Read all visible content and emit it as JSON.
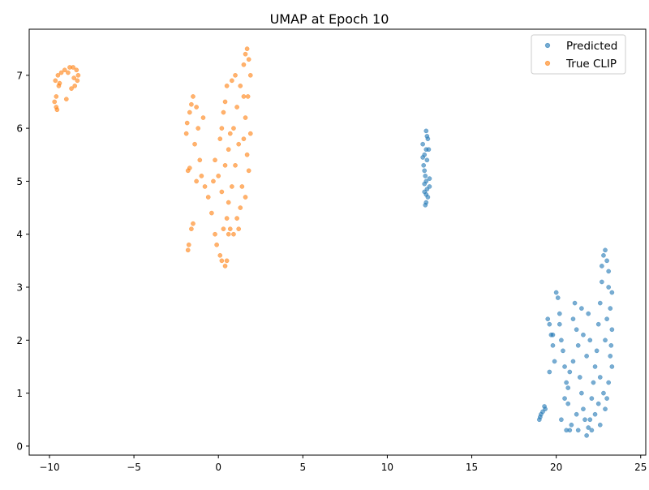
{
  "chart_data": {
    "type": "scatter",
    "title": "UMAP at Epoch 10",
    "xlabel": "",
    "ylabel": "",
    "xlim": [
      -11.2,
      25.3
    ],
    "ylim": [
      -0.17,
      7.87
    ],
    "xticks": [
      -10,
      -5,
      0,
      5,
      10,
      15,
      20,
      25
    ],
    "yticks": [
      0,
      1,
      2,
      3,
      4,
      5,
      6,
      7
    ],
    "grid": false,
    "legend_position": "top-right",
    "marker_alpha": 0.6,
    "series": [
      {
        "name": "Predicted",
        "color": "#1f77b4",
        "points": [
          [
            12.1,
            5.7
          ],
          [
            12.2,
            5.5
          ],
          [
            12.3,
            5.95
          ],
          [
            12.35,
            5.85
          ],
          [
            12.4,
            5.8
          ],
          [
            12.3,
            5.6
          ],
          [
            12.15,
            5.3
          ],
          [
            12.2,
            5.2
          ],
          [
            12.25,
            5.1
          ],
          [
            12.3,
            5.0
          ],
          [
            12.5,
            5.05
          ],
          [
            12.5,
            4.9
          ],
          [
            12.35,
            4.85
          ],
          [
            12.3,
            4.75
          ],
          [
            12.4,
            4.7
          ],
          [
            12.3,
            4.6
          ],
          [
            12.25,
            4.55
          ],
          [
            12.2,
            4.95
          ],
          [
            12.45,
            5.6
          ],
          [
            12.1,
            5.45
          ],
          [
            12.35,
            5.4
          ],
          [
            12.2,
            4.8
          ],
          [
            19.0,
            0.5
          ],
          [
            19.05,
            0.55
          ],
          [
            19.1,
            0.6
          ],
          [
            19.2,
            0.65
          ],
          [
            19.3,
            0.75
          ],
          [
            19.35,
            0.7
          ],
          [
            19.5,
            2.4
          ],
          [
            19.6,
            2.3
          ],
          [
            19.7,
            2.1
          ],
          [
            19.8,
            1.9
          ],
          [
            19.6,
            1.4
          ],
          [
            19.9,
            1.6
          ],
          [
            20.0,
            2.9
          ],
          [
            20.1,
            2.8
          ],
          [
            20.2,
            2.5
          ],
          [
            20.2,
            2.3
          ],
          [
            20.3,
            2.0
          ],
          [
            20.4,
            1.8
          ],
          [
            20.5,
            1.5
          ],
          [
            20.6,
            1.2
          ],
          [
            20.5,
            0.9
          ],
          [
            20.7,
            0.8
          ],
          [
            20.8,
            0.3
          ],
          [
            20.9,
            0.4
          ],
          [
            20.7,
            1.1
          ],
          [
            20.8,
            1.4
          ],
          [
            21.0,
            2.4
          ],
          [
            21.1,
            2.7
          ],
          [
            21.2,
            2.2
          ],
          [
            21.3,
            1.9
          ],
          [
            21.0,
            1.6
          ],
          [
            21.4,
            1.3
          ],
          [
            21.5,
            1.0
          ],
          [
            21.6,
            0.7
          ],
          [
            21.7,
            0.5
          ],
          [
            21.3,
            0.3
          ],
          [
            21.8,
            0.2
          ],
          [
            21.9,
            0.35
          ],
          [
            22.0,
            0.5
          ],
          [
            22.1,
            0.9
          ],
          [
            22.2,
            1.2
          ],
          [
            21.5,
            2.6
          ],
          [
            21.6,
            2.1
          ],
          [
            21.8,
            1.7
          ],
          [
            21.9,
            2.5
          ],
          [
            22.0,
            2.0
          ],
          [
            22.3,
            1.5
          ],
          [
            22.4,
            1.8
          ],
          [
            22.5,
            2.3
          ],
          [
            22.6,
            2.7
          ],
          [
            22.7,
            3.1
          ],
          [
            22.8,
            3.6
          ],
          [
            22.9,
            3.7
          ],
          [
            22.7,
            3.4
          ],
          [
            23.0,
            3.5
          ],
          [
            23.1,
            3.3
          ],
          [
            23.1,
            3.0
          ],
          [
            23.2,
            2.6
          ],
          [
            23.3,
            2.2
          ],
          [
            23.25,
            1.9
          ],
          [
            23.2,
            1.7
          ],
          [
            23.3,
            1.5
          ],
          [
            23.1,
            1.2
          ],
          [
            23.0,
            0.9
          ],
          [
            22.9,
            0.7
          ],
          [
            22.8,
            1.0
          ],
          [
            22.6,
            1.3
          ],
          [
            22.9,
            2.0
          ],
          [
            23.0,
            2.4
          ],
          [
            22.6,
            0.4
          ],
          [
            22.3,
            0.6
          ],
          [
            22.1,
            0.3
          ],
          [
            20.3,
            0.5
          ],
          [
            20.6,
            0.3
          ],
          [
            19.8,
            2.1
          ],
          [
            21.2,
            0.6
          ],
          [
            22.5,
            0.8
          ],
          [
            23.3,
            2.9
          ]
        ]
      },
      {
        "name": "True CLIP",
        "color": "#ff7f0e",
        "points": [
          [
            -9.7,
            6.5
          ],
          [
            -9.6,
            6.4
          ],
          [
            -9.55,
            6.35
          ],
          [
            -9.6,
            6.6
          ],
          [
            -9.65,
            6.9
          ],
          [
            -9.5,
            7.0
          ],
          [
            -9.4,
            6.85
          ],
          [
            -9.3,
            7.05
          ],
          [
            -9.1,
            7.1
          ],
          [
            -8.9,
            7.05
          ],
          [
            -8.8,
            7.15
          ],
          [
            -8.6,
            7.15
          ],
          [
            -8.4,
            7.1
          ],
          [
            -8.3,
            7.0
          ],
          [
            -8.35,
            6.9
          ],
          [
            -8.5,
            6.8
          ],
          [
            -8.7,
            6.75
          ],
          [
            -9.0,
            6.55
          ],
          [
            -9.45,
            6.8
          ],
          [
            -8.55,
            6.95
          ],
          [
            -1.8,
            3.7
          ],
          [
            -1.75,
            3.8
          ],
          [
            -1.6,
            4.1
          ],
          [
            -1.5,
            4.2
          ],
          [
            -1.8,
            5.2
          ],
          [
            -1.7,
            5.25
          ],
          [
            -1.9,
            5.9
          ],
          [
            -1.85,
            6.1
          ],
          [
            -1.7,
            6.3
          ],
          [
            -1.6,
            6.45
          ],
          [
            -1.5,
            6.6
          ],
          [
            -1.3,
            6.4
          ],
          [
            -1.2,
            6.0
          ],
          [
            -1.4,
            5.7
          ],
          [
            -1.1,
            5.4
          ],
          [
            -1.0,
            5.1
          ],
          [
            -0.8,
            4.9
          ],
          [
            -0.6,
            4.7
          ],
          [
            -0.4,
            4.4
          ],
          [
            -0.2,
            4.0
          ],
          [
            -0.1,
            3.8
          ],
          [
            0.1,
            3.6
          ],
          [
            0.2,
            3.5
          ],
          [
            0.4,
            3.4
          ],
          [
            0.5,
            3.5
          ],
          [
            0.3,
            4.1
          ],
          [
            0.5,
            4.3
          ],
          [
            0.6,
            4.6
          ],
          [
            0.2,
            4.8
          ],
          [
            0.0,
            5.1
          ],
          [
            -0.2,
            5.4
          ],
          [
            0.1,
            5.8
          ],
          [
            0.3,
            6.3
          ],
          [
            0.4,
            6.5
          ],
          [
            0.5,
            6.8
          ],
          [
            0.7,
            4.1
          ],
          [
            0.9,
            4.0
          ],
          [
            1.1,
            4.3
          ],
          [
            0.8,
            4.9
          ],
          [
            1.0,
            5.3
          ],
          [
            1.2,
            5.7
          ],
          [
            0.9,
            6.0
          ],
          [
            1.1,
            6.4
          ],
          [
            0.8,
            6.9
          ],
          [
            1.0,
            7.0
          ],
          [
            1.3,
            6.8
          ],
          [
            1.5,
            7.2
          ],
          [
            1.6,
            7.4
          ],
          [
            1.7,
            7.5
          ],
          [
            1.8,
            7.3
          ],
          [
            1.9,
            7.0
          ],
          [
            1.75,
            6.6
          ],
          [
            1.6,
            6.2
          ],
          [
            1.5,
            5.8
          ],
          [
            1.7,
            5.5
          ],
          [
            1.8,
            5.2
          ],
          [
            1.4,
            4.9
          ],
          [
            1.3,
            4.5
          ],
          [
            1.6,
            4.7
          ],
          [
            1.2,
            4.1
          ],
          [
            0.6,
            4.0
          ],
          [
            -0.3,
            5.0
          ],
          [
            0.4,
            5.3
          ],
          [
            0.6,
            5.6
          ],
          [
            -0.9,
            6.2
          ],
          [
            -1.3,
            5.0
          ],
          [
            1.9,
            5.9
          ],
          [
            1.5,
            6.6
          ],
          [
            0.2,
            6.0
          ],
          [
            0.7,
            5.9
          ]
        ]
      }
    ]
  }
}
